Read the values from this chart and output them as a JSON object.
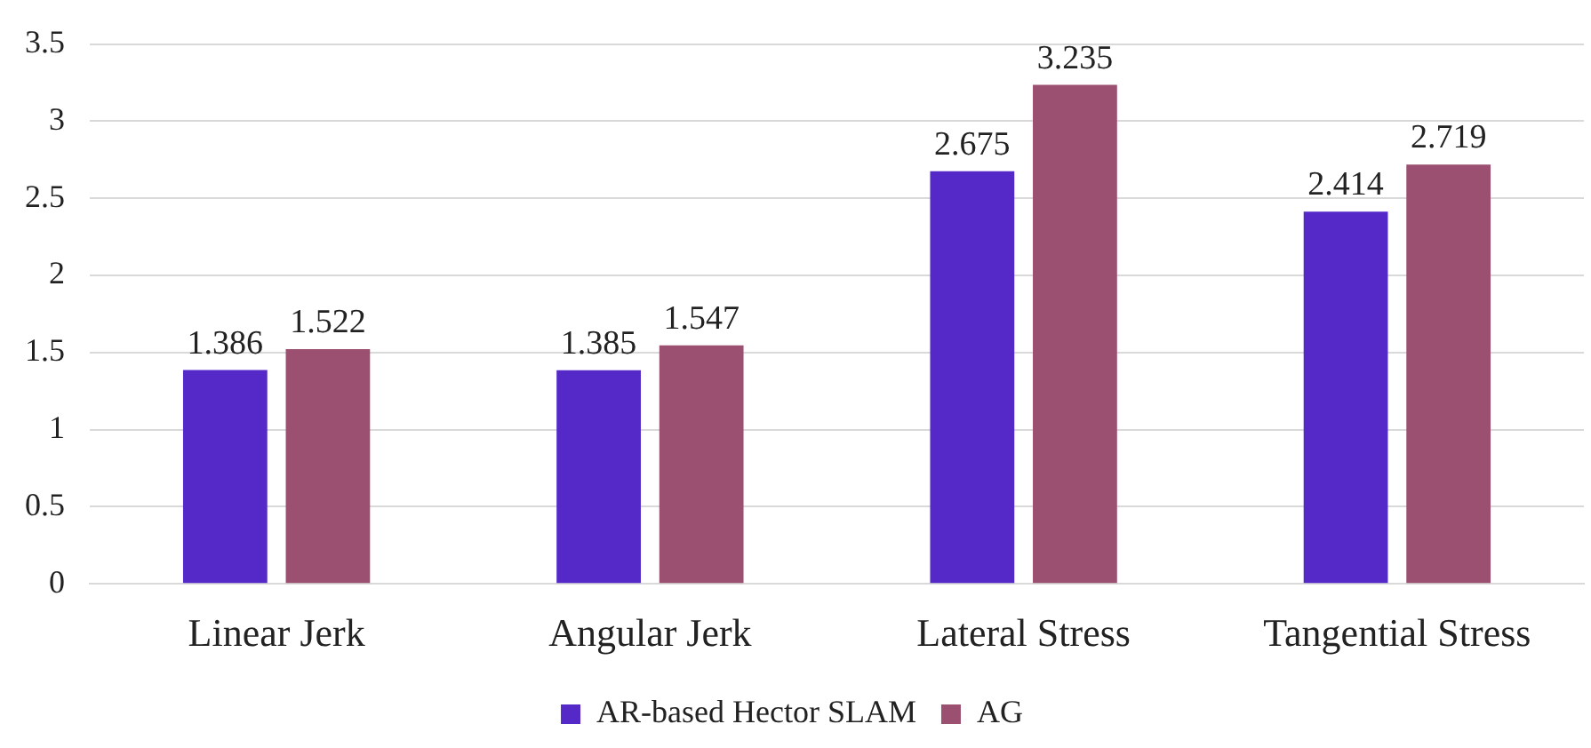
{
  "chart_data": {
    "type": "bar",
    "categories": [
      "Linear Jerk",
      "Angular Jerk",
      "Lateral Stress",
      "Tangential Stress"
    ],
    "series": [
      {
        "name": "AR-based Hector SLAM",
        "color": "#5429c8",
        "values": [
          1.386,
          1.385,
          2.675,
          2.414
        ]
      },
      {
        "name": "AG",
        "color": "#9b5072",
        "values": [
          1.522,
          1.547,
          3.235,
          2.719
        ]
      }
    ],
    "ylim": [
      0,
      3.5
    ],
    "yticks": [
      0,
      0.5,
      1,
      1.5,
      2,
      2.5,
      3,
      3.5
    ],
    "grid": "y",
    "legend": "bottom",
    "data_labels": true
  }
}
